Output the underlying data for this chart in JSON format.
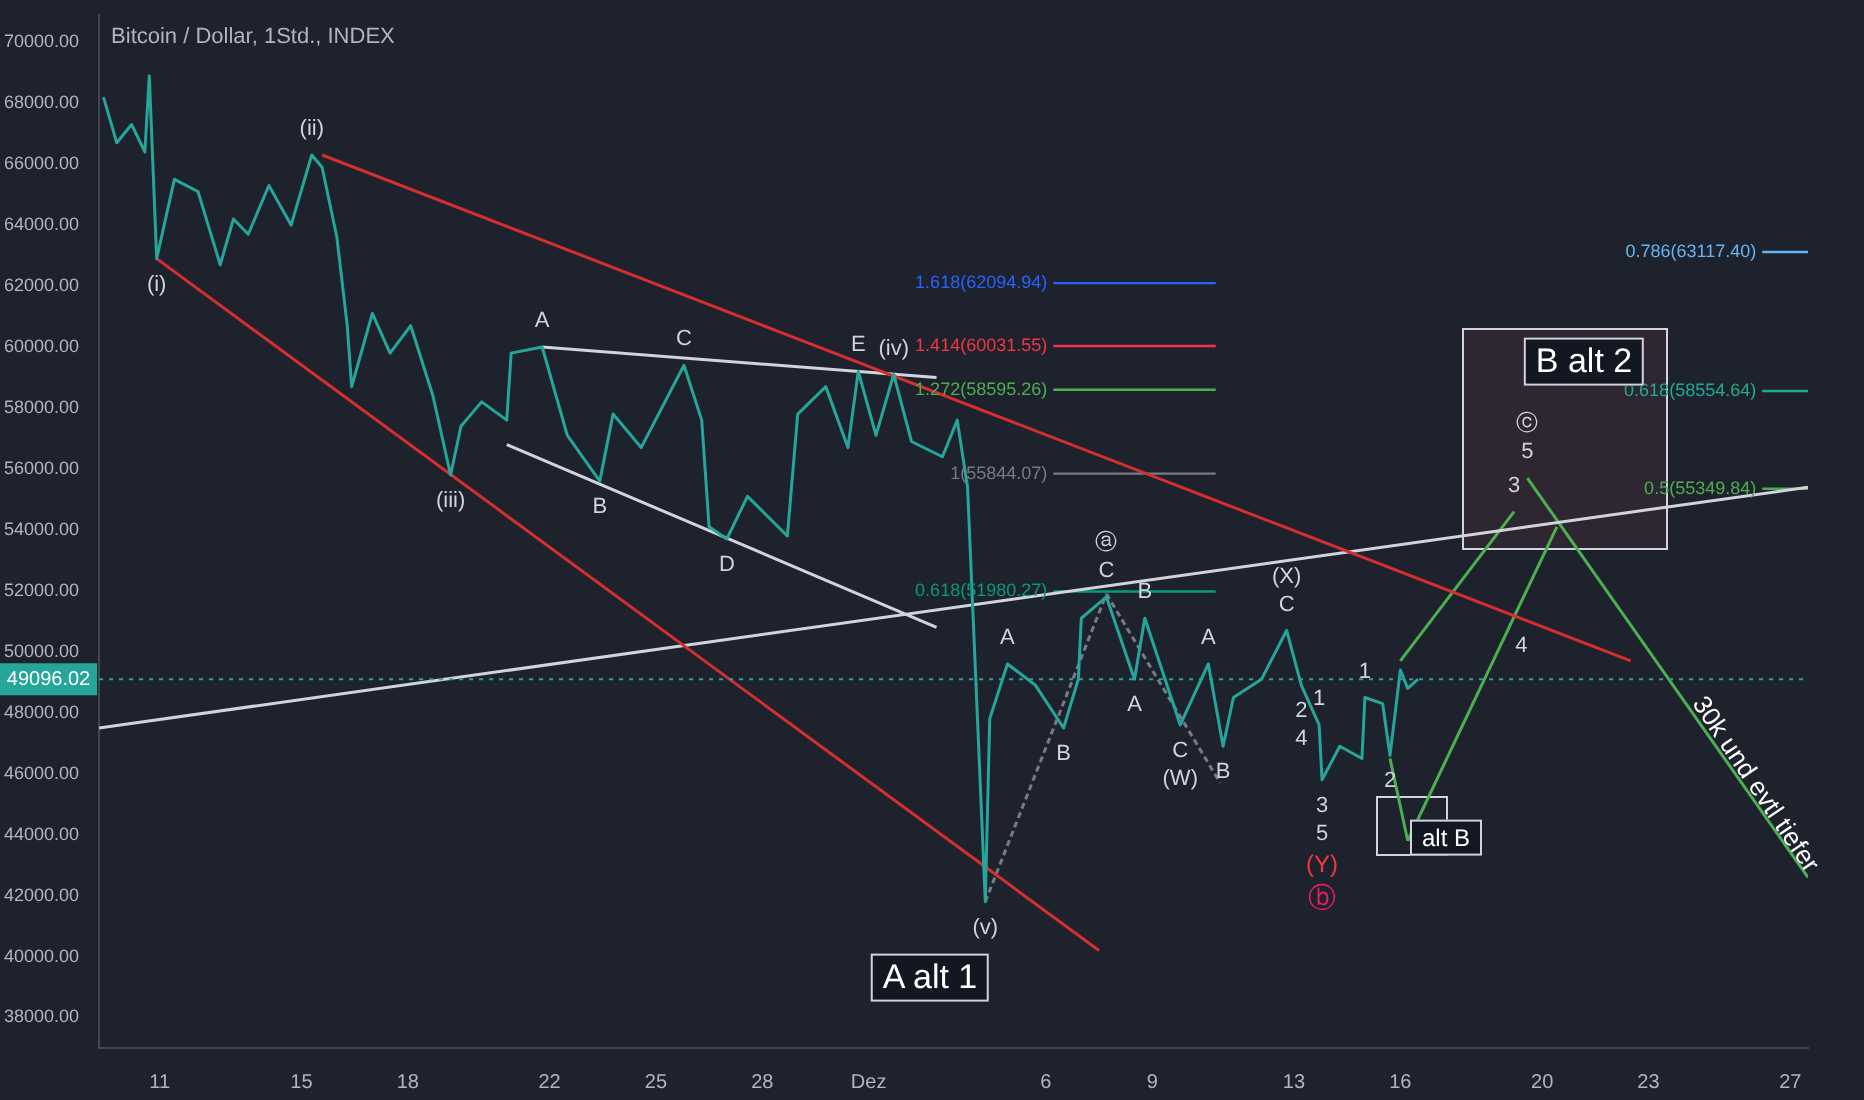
{
  "chart_data": {
    "type": "line",
    "title": "Bitcoin / Dollar, 1Std., INDEX",
    "xlim": [
      "--11-09T07:00",
      "--12-27T12:00"
    ],
    "ylim": [
      37000,
      70900
    ],
    "xticks": [
      {
        "value": "--11-11",
        "label": "11"
      },
      {
        "value": "--11-15",
        "label": "15"
      },
      {
        "value": "--11-18",
        "label": "18"
      },
      {
        "value": "--11-22",
        "label": "22"
      },
      {
        "value": "--11-25",
        "label": "25"
      },
      {
        "value": "--11-28",
        "label": "28"
      },
      {
        "value": "--12-01",
        "label": "Dez"
      },
      {
        "value": "--12-06",
        "label": "6"
      },
      {
        "value": "--12-09",
        "label": "9"
      },
      {
        "value": "--12-13",
        "label": "13"
      },
      {
        "value": "--12-16",
        "label": "16"
      },
      {
        "value": "--12-20",
        "label": "20"
      },
      {
        "value": "--12-23",
        "label": "23"
      },
      {
        "value": "--12-27",
        "label": "27"
      }
    ],
    "yticks": [
      {
        "value": 38000,
        "label": "38000.00"
      },
      {
        "value": 40000,
        "label": "40000.00"
      },
      {
        "value": 42000,
        "label": "42000.00"
      },
      {
        "value": 44000,
        "label": "44000.00"
      },
      {
        "value": 46000,
        "label": "46000.00"
      },
      {
        "value": 48000,
        "label": "48000.00"
      },
      {
        "value": 50000,
        "label": "50000.00"
      },
      {
        "value": 52000,
        "label": "52000.00"
      },
      {
        "value": 54000,
        "label": "54000.00"
      },
      {
        "value": 56000,
        "label": "56000.00"
      },
      {
        "value": 58000,
        "label": "58000.00"
      },
      {
        "value": 60000,
        "label": "60000.00"
      },
      {
        "value": 62000,
        "label": "62000.00"
      },
      {
        "value": 64000,
        "label": "64000.00"
      },
      {
        "value": 66000,
        "label": "66000.00"
      },
      {
        "value": 68000,
        "label": "68000.00"
      },
      {
        "value": 70000,
        "label": "70000.00"
      }
    ],
    "grid": false,
    "legend": false,
    "marker": "none",
    "series": [
      {
        "color": "#26a69a",
        "x": [
          "--11-09T10:00",
          "--11-09T19:00",
          "--11-10T05:00",
          "--11-10T14:00",
          "--11-10T17:00",
          "--11-10T22:00",
          "--11-11T10:00",
          "--11-12T02:00",
          "--11-12T17:00",
          "--11-13T02:00",
          "--11-13T12:00",
          "--11-14T02:00",
          "--11-14T17:00",
          "--11-15T07:00",
          "--11-15T14:00",
          "--11-16T00:00",
          "--11-16T07:00",
          "--11-16T10:00",
          "--11-17T00:00",
          "--11-17T12:00",
          "--11-18T02:00",
          "--11-18T17:00",
          "--11-19T05:00",
          "--11-19T12:00",
          "--11-20T02:00",
          "--11-20T19:00",
          "--11-20T22:00",
          "--11-21T19:00",
          "--11-22T12:00",
          "--11-23T10:00",
          "--11-23T19:00",
          "--11-24T14:00",
          "--11-25T19:00",
          "--11-26T07:00",
          "--11-26T12:00",
          "--11-27T00:00",
          "--11-27T14:00",
          "--11-28T17:00",
          "--11-29T00:00",
          "--11-29T19:00",
          "--11-30T10:00",
          "--11-30T17:00",
          "--12-01T05:00",
          "--12-01T17:00",
          "--12-02T05:00",
          "--12-03T02:00",
          "--12-03T12:00",
          "--12-03T19:00",
          "--12-04T07:00",
          "--12-04T10:00",
          "--12-04T22:00",
          "--12-05T17:00",
          "--12-06T12:00",
          "--12-06T22:00",
          "--12-07T00:00",
          "--12-07T17:00",
          "--12-08T12:00",
          "--12-08T19:00",
          "--12-09T19:00",
          "--12-10T14:00",
          "--12-11T00:00",
          "--12-11T07:00",
          "--12-12T02:00",
          "--12-12T19:00",
          "--12-13T05:00",
          "--12-13T17:00",
          "--12-13T19:00",
          "--12-14T07:00",
          "--12-14T22:00",
          "--12-15T00:00",
          "--12-15T12:00",
          "--12-15T17:00",
          "--12-16T00:00",
          "--12-16T05:00",
          "--12-16T12:00"
        ],
        "values": [
          68200,
          66700,
          67300,
          66400,
          68900,
          62900,
          65500,
          65100,
          62700,
          64200,
          63700,
          65300,
          64000,
          66300,
          65900,
          63600,
          60700,
          58700,
          61100,
          59800,
          60700,
          58400,
          55800,
          57400,
          58200,
          57600,
          59800,
          60000,
          57100,
          55600,
          57800,
          56700,
          59400,
          57600,
          54100,
          53700,
          55100,
          53800,
          57800,
          58700,
          56700,
          59200,
          57100,
          59100,
          56900,
          56400,
          57600,
          55400,
          41800,
          47800,
          49600,
          48900,
          47500,
          49100,
          51100,
          51800,
          49100,
          51100,
          47600,
          49600,
          46900,
          48500,
          49100,
          50700,
          48900,
          47600,
          45800,
          46900,
          46500,
          48500,
          48300,
          46600,
          49400,
          48800,
          49100
        ]
      },
      {
        "color": "#d32f2f",
        "x": [
          "--11-10T22:00",
          "--12-07T12:00"
        ],
        "values": [
          62900,
          40200
        ]
      },
      {
        "color": "#d32f2f",
        "x": [
          "--11-15T14:00",
          "--12-22T12:00"
        ],
        "values": [
          66300,
          49700
        ]
      },
      {
        "color": "#d1d4dc",
        "x": [
          "--11-21T19:00",
          "--12-02T22:00"
        ],
        "values": [
          60000,
          59000
        ]
      },
      {
        "color": "#d1d4dc",
        "x": [
          "--11-20T19:00",
          "--12-02T22:00"
        ],
        "values": [
          56800,
          50800
        ]
      },
      {
        "color": "#d1d4dc",
        "x": [
          "--11-09T07:00",
          "--12-27T12:00"
        ],
        "values": [
          47500,
          55400
        ]
      },
      {
        "color": "#787b86",
        "line_style": "dashed",
        "x": [
          "--12-04T07:00",
          "--12-07T17:00"
        ],
        "values": [
          41800,
          51900
        ]
      },
      {
        "color": "#787b86",
        "line_style": "dashed",
        "x": [
          "--12-07T17:00",
          "--12-10T22:00"
        ],
        "values": [
          51900,
          45700
        ]
      },
      {
        "color": "#4caf50",
        "x": [
          "--12-16T00:00",
          "--12-19T05:00"
        ],
        "values": [
          49700,
          54600
        ]
      },
      {
        "color": "#4caf50",
        "x": [
          "--12-15T17:00",
          "--12-16T05:00"
        ],
        "values": [
          46500,
          43800
        ]
      },
      {
        "color": "#4caf50",
        "x": [
          "--12-16T05:00",
          "--12-20T10:00"
        ],
        "values": [
          43800,
          54100
        ]
      },
      {
        "color": "#4caf50",
        "x": [
          "--12-19T14:00",
          "--12-27T12:00"
        ],
        "values": [
          55700,
          42600
        ]
      },
      {
        "name": "1.618(62094.94)",
        "color": "#2962ff",
        "x": [
          "--12-06T05:00",
          "--12-10T19:00"
        ],
        "values": [
          62094.94,
          62094.94
        ]
      },
      {
        "name": "1.414(60031.55)",
        "color": "#f23645",
        "x": [
          "--12-06T05:00",
          "--12-10T19:00"
        ],
        "values": [
          60031.55,
          60031.55
        ]
      },
      {
        "name": "1.272(58595.26)",
        "color": "#4caf50",
        "x": [
          "--12-06T05:00",
          "--12-10T19:00"
        ],
        "values": [
          58595.26,
          58595.26
        ]
      },
      {
        "name": "1(55844.07)",
        "color": "#787b86",
        "x": [
          "--12-06T05:00",
          "--12-10T19:00"
        ],
        "values": [
          55844.07,
          55844.07
        ]
      },
      {
        "name": "0.618(51980.27)",
        "color": "#089981",
        "x": [
          "--12-06T05:00",
          "--12-10T19:00"
        ],
        "values": [
          51980.27,
          51980.27
        ]
      },
      {
        "name": "0.786(63117.40)",
        "color": "#64b5f6",
        "x": [
          "--12-26T05:00",
          "--12-27T12:00"
        ],
        "values": [
          63117.4,
          63117.4
        ]
      },
      {
        "name": "0.618(58554.64)",
        "color": "#22ab94",
        "x": [
          "--12-26T05:00",
          "--12-27T12:00"
        ],
        "values": [
          58554.64,
          58554.64
        ]
      },
      {
        "name": "0.5(55349.84)",
        "color": "#4caf50",
        "x": [
          "--12-26T05:00",
          "--12-27T12:00"
        ],
        "values": [
          55349.84,
          55349.84
        ]
      }
    ],
    "ref_lines": [
      {
        "axis": "y",
        "value": 49096.02,
        "label": "49096.02",
        "color": "#26a69a",
        "line_style": "dotted"
      }
    ],
    "annotations": [
      {
        "text": "(i)",
        "x": "--11-10T22:00",
        "y": 62900
      },
      {
        "text": "(ii)",
        "x": "--11-15T07:00",
        "y": 66300
      },
      {
        "text": "(iii)",
        "x": "--11-19T05:00",
        "y": 55800
      },
      {
        "text": "(iv)",
        "x": "--12-01T17:00",
        "y": 59100
      },
      {
        "text": "(v)",
        "x": "--12-04T07:00",
        "y": 41800
      },
      {
        "text": "A",
        "x": "--11-21T19:00",
        "y": 60000
      },
      {
        "text": "B",
        "x": "--11-23T10:00",
        "y": 55600
      },
      {
        "text": "C",
        "x": "--11-25T19:00",
        "y": 59400
      },
      {
        "text": "D",
        "x": "--11-27T00:00",
        "y": 53700
      },
      {
        "text": "E",
        "x": "--11-30T17:00",
        "y": 59200
      },
      {
        "text": "C",
        "x": "--12-07T17:00",
        "y": 51800
      },
      {
        "text": "ⓐ",
        "x": "--12-07T17:00",
        "y": 51800
      },
      {
        "text": "B",
        "x": "--12-08T19:00",
        "y": 51100
      },
      {
        "text": "A",
        "x": "--12-04T22:00",
        "y": 49600
      },
      {
        "text": "B",
        "x": "--12-06T12:00",
        "y": 47500
      },
      {
        "text": "A",
        "x": "--12-08T12:00",
        "y": 49100
      },
      {
        "text": "C",
        "x": "--12-09T19:00",
        "y": 47600
      },
      {
        "text": "(W)",
        "x": "--12-09T19:00",
        "y": 47600
      },
      {
        "text": "B",
        "x": "--12-11T00:00",
        "y": 46900
      },
      {
        "text": "A",
        "x": "--12-10T14:00",
        "y": 49600
      },
      {
        "text": "C",
        "x": "--12-12T19:00",
        "y": 50700
      },
      {
        "text": "(X)",
        "x": "--12-12T19:00",
        "y": 50700
      },
      {
        "text": "2",
        "x": "--12-13T05:00",
        "y": 48900
      },
      {
        "text": "4",
        "x": "--12-13T05:00",
        "y": 48900
      },
      {
        "text": "1",
        "x": "--12-13T17:00",
        "y": 47600
      },
      {
        "text": "3",
        "x": "--12-13T19:00",
        "y": 45800
      },
      {
        "text": "5",
        "x": "--12-13T19:00",
        "y": 45800
      },
      {
        "text": "1",
        "x": "--12-15T00:00",
        "y": 48500
      },
      {
        "text": "2",
        "x": "--12-15T17:00",
        "y": 46600
      },
      {
        "text": "3",
        "x": "--12-19T05:00",
        "y": 54600
      },
      {
        "text": "4",
        "x": "--12-18T19:00",
        "y": 50180
      },
      {
        "text": "5",
        "x": "--12-19T14:00",
        "y": 55700
      },
      {
        "text": "ⓒ",
        "x": "--12-19T14:00",
        "y": 55700
      },
      "B alt 2",
      "alt B",
      "A alt 1",
      "30k und evtl tiefer",
      "ⓑ",
      "(Y)"
    ]
  }
}
